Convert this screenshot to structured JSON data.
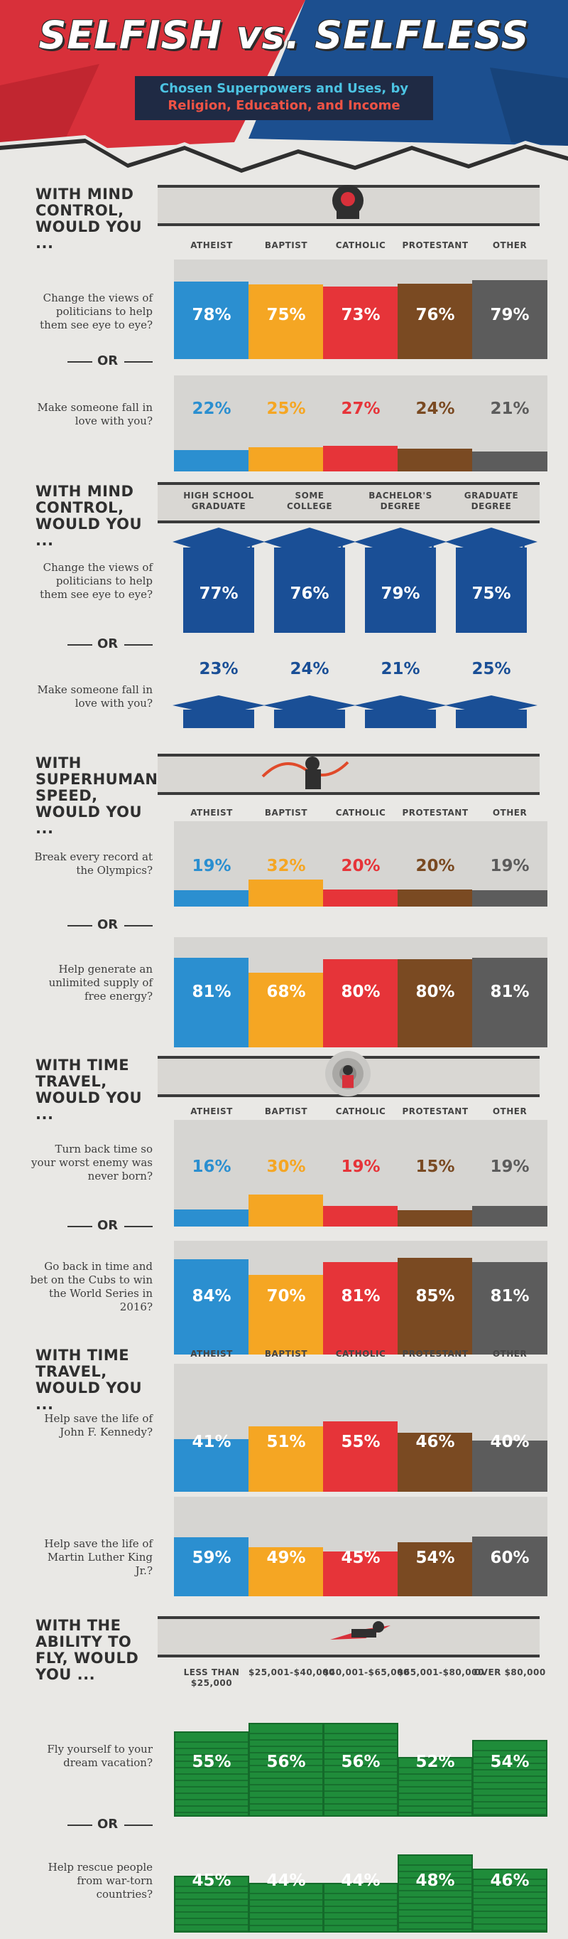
{
  "header": {
    "title": "SELFISH vs. SELFLESS",
    "subtitle_line1": "Chosen Superpowers and Uses, by",
    "subtitle_line2": "Religion, Education, and Income"
  },
  "colors": {
    "atheist": "#2b8fd0",
    "baptist": "#f5a623",
    "catholic": "#e63439",
    "protestant": "#7a4a22",
    "other": "#5c5c5c",
    "education": "#1a4f96",
    "income": "#1f8c3a",
    "track": "#d6d5d2",
    "header_red": "#d8303a",
    "header_blue": "#1c4f8f"
  },
  "icons": [
    "mind-control-hero-icon",
    "graduation-cap-icon",
    "speedster-hero-icon",
    "time-portal-hero-icon",
    "flying-hero-icon",
    "dollar-bill-icon"
  ],
  "or_label": "OR",
  "chart_data": [
    {
      "type": "bar",
      "title": "WITH MIND CONTROL, WOULD YOU ...",
      "categories": [
        "ATHEIST",
        "BAPTIST",
        "CATHOLIC",
        "PROTESTANT",
        "OTHER"
      ],
      "series": [
        {
          "name": "Change the views of politicians to help them see eye to eye?",
          "values": [
            78,
            75,
            73,
            76,
            79
          ]
        },
        {
          "name": "Make someone fall in love with you?",
          "values": [
            22,
            25,
            27,
            24,
            21
          ]
        }
      ],
      "ylim": [
        0,
        100
      ]
    },
    {
      "type": "bar",
      "title": "WITH MIND CONTROL, WOULD YOU ...",
      "categories": [
        "HIGH SCHOOL GRADUATE",
        "SOME COLLEGE",
        "BACHELOR'S DEGREE",
        "GRADUATE DEGREE"
      ],
      "series": [
        {
          "name": "Change the views of politicians to help them see eye to eye?",
          "values": [
            77,
            76,
            79,
            75
          ]
        },
        {
          "name": "Make someone fall in love with you?",
          "values": [
            23,
            24,
            21,
            25
          ]
        }
      ],
      "ylim": [
        0,
        100
      ]
    },
    {
      "type": "bar",
      "title": "WITH SUPERHUMAN SPEED, WOULD YOU ...",
      "categories": [
        "ATHEIST",
        "BAPTIST",
        "CATHOLIC",
        "PROTESTANT",
        "OTHER"
      ],
      "series": [
        {
          "name": "Break every record at the Olympics?",
          "values": [
            19,
            32,
            20,
            20,
            19
          ]
        },
        {
          "name": "Help generate an unlimited supply of free energy?",
          "values": [
            81,
            68,
            80,
            80,
            81
          ]
        }
      ],
      "ylim": [
        0,
        100
      ]
    },
    {
      "type": "bar",
      "title": "WITH TIME TRAVEL, WOULD YOU ...",
      "categories": [
        "ATHEIST",
        "BAPTIST",
        "CATHOLIC",
        "PROTESTANT",
        "OTHER"
      ],
      "series": [
        {
          "name": "Turn back time so your worst enemy was never born?",
          "values": [
            16,
            30,
            19,
            15,
            19
          ]
        },
        {
          "name": "Go back in time and bet on the Cubs to win the World Series in 2016?",
          "values": [
            84,
            70,
            81,
            85,
            81
          ]
        }
      ],
      "ylim": [
        0,
        100
      ]
    },
    {
      "type": "bar",
      "title": "WITH TIME TRAVEL, WOULD YOU ...",
      "categories": [
        "ATHEIST",
        "BAPTIST",
        "CATHOLIC",
        "PROTESTANT",
        "OTHER"
      ],
      "series": [
        {
          "name": "Help save the life of John F. Kennedy?",
          "values": [
            41,
            51,
            55,
            46,
            40
          ]
        },
        {
          "name": "Help save the life of Martin Luther King Jr.?",
          "values": [
            59,
            49,
            45,
            54,
            60
          ]
        }
      ],
      "ylim": [
        0,
        100
      ]
    },
    {
      "type": "bar",
      "title": "WITH THE ABILITY TO FLY, WOULD YOU ...",
      "categories": [
        "LESS THAN $25,000",
        "$25,001-$40,000",
        "$40,001-$65,000",
        "$65,001-$80,000",
        "OVER $80,000"
      ],
      "series": [
        {
          "name": "Fly yourself to your dream vacation?",
          "values": [
            55,
            56,
            56,
            52,
            54
          ]
        },
        {
          "name": "Help rescue people from war-torn countries?",
          "values": [
            45,
            44,
            44,
            48,
            46
          ]
        }
      ],
      "ylim": [
        0,
        100
      ]
    }
  ]
}
